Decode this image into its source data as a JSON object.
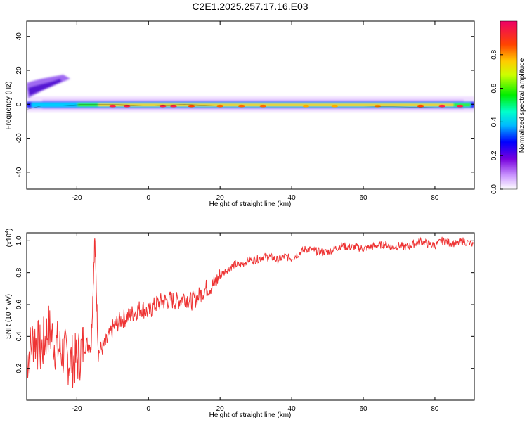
{
  "title": "C2E1.2025.257.17.16.E03",
  "chart_data": [
    {
      "type": "heatmap",
      "xlabel": "Height of straight line (km)",
      "ylabel": "Frequency (Hz)",
      "xlim": [
        -34,
        91
      ],
      "ylim": [
        -50,
        49
      ],
      "xticks": [
        -20,
        0,
        20,
        40,
        60,
        80
      ],
      "xtick_labels": [
        "-20",
        "0",
        "20",
        "40",
        "60",
        "80"
      ],
      "yticks": [
        -40,
        -20,
        0,
        20,
        40
      ],
      "ytick_labels": [
        "-40",
        "-20",
        "0",
        "20",
        "40"
      ],
      "ridge_description": "Energy concentrated near 0 Hz across full height range; secondary scattered energy at 5-18 Hz between -34 and -22 km",
      "ridge_center_hz": [
        {
          "x": -34,
          "y": -3
        },
        {
          "x": -30,
          "y": -1
        },
        {
          "x": -25,
          "y": -1
        },
        {
          "x": -18,
          "y": 0
        },
        {
          "x": -10,
          "y": 0
        },
        {
          "x": 0,
          "y": -1
        },
        {
          "x": 10,
          "y": 0
        },
        {
          "x": 20,
          "y": -1
        },
        {
          "x": 40,
          "y": -1
        },
        {
          "x": 60,
          "y": -1
        },
        {
          "x": 80,
          "y": -2
        },
        {
          "x": 91,
          "y": -2
        }
      ],
      "colorbar": {
        "label": "Normalized spectral amplitude",
        "range": [
          0,
          1
        ],
        "ticks": [
          0.0,
          0.2,
          0.4,
          0.6,
          0.8
        ],
        "tick_labels": [
          "0.0",
          "0.2",
          "0.4",
          "0.6",
          "0.8"
        ]
      }
    },
    {
      "type": "line",
      "color": "#ee3333",
      "xlabel": "Height of straight line (km)",
      "ylabel": "SNR (10 * v/v)",
      "scale_label": "(x10",
      "scale_exponent": "4",
      "scale_suffix": ")",
      "xlim": [
        -34,
        91
      ],
      "ylim": [
        0,
        1.05
      ],
      "xticks": [
        -20,
        0,
        20,
        40,
        60,
        80
      ],
      "xtick_labels": [
        "-20",
        "0",
        "20",
        "40",
        "60",
        "80"
      ],
      "yticks": [
        0.2,
        0.4,
        0.6,
        0.8,
        1.0
      ],
      "ytick_labels": [
        "0.2",
        "0.4",
        "0.6",
        "0.8",
        "1.0"
      ],
      "series": [
        {
          "name": "SNR",
          "x": [
            -34,
            -32,
            -30,
            -28,
            -26,
            -24,
            -22,
            -20,
            -18,
            -16,
            -15,
            -14,
            -12,
            -10,
            -8,
            -6,
            -4,
            -2,
            0,
            2,
            4,
            6,
            8,
            10,
            12,
            14,
            16,
            18,
            20,
            22,
            24,
            26,
            28,
            30,
            32,
            34,
            36,
            38,
            40,
            42,
            44,
            46,
            48,
            50,
            52,
            54,
            56,
            58,
            60,
            62,
            64,
            66,
            68,
            70,
            72,
            74,
            76,
            78,
            80,
            82,
            84,
            86,
            88,
            91
          ],
          "y": [
            0.25,
            0.4,
            0.3,
            0.45,
            0.35,
            0.3,
            0.25,
            0.25,
            0.35,
            0.35,
            1.02,
            0.3,
            0.35,
            0.45,
            0.5,
            0.52,
            0.55,
            0.58,
            0.55,
            0.6,
            0.62,
            0.63,
            0.62,
            0.65,
            0.62,
            0.65,
            0.7,
            0.72,
            0.78,
            0.82,
            0.85,
            0.85,
            0.88,
            0.88,
            0.9,
            0.9,
            0.88,
            0.9,
            0.89,
            0.92,
            0.95,
            0.94,
            0.93,
            0.93,
            0.95,
            0.97,
            0.96,
            0.96,
            0.95,
            0.96,
            0.97,
            0.98,
            0.96,
            0.97,
            0.96,
            0.98,
            1.0,
            0.98,
            0.97,
            1.0,
            0.99,
            0.98,
            1.0,
            0.97
          ]
        }
      ]
    }
  ]
}
